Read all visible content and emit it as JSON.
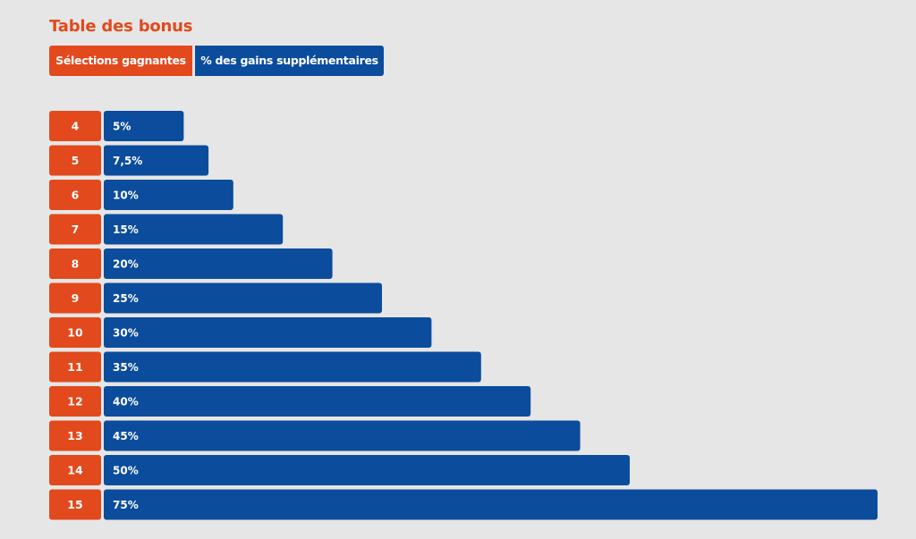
{
  "title": "Table des bonus",
  "header": {
    "col1": "Sélections gagnantes",
    "col2": "% des gains supplémentaires"
  },
  "colors": {
    "orange": "#e2491d",
    "blue": "#0b4c9c",
    "background": "#e6e6e6"
  },
  "chart_data": {
    "type": "bar",
    "orientation": "horizontal",
    "categories": [
      "4",
      "5",
      "6",
      "7",
      "8",
      "9",
      "10",
      "11",
      "12",
      "13",
      "14",
      "15"
    ],
    "values": [
      5,
      7.5,
      10,
      15,
      20,
      25,
      30,
      35,
      40,
      45,
      50,
      75
    ],
    "labels": [
      "5%",
      "7,5%",
      "10%",
      "15%",
      "20%",
      "25%",
      "30%",
      "35%",
      "40%",
      "45%",
      "50%",
      "75%"
    ],
    "title": "Table des bonus",
    "xlabel": "% des gains supplémentaires",
    "ylabel": "Sélections gagnantes",
    "xlim": [
      0,
      75
    ]
  }
}
